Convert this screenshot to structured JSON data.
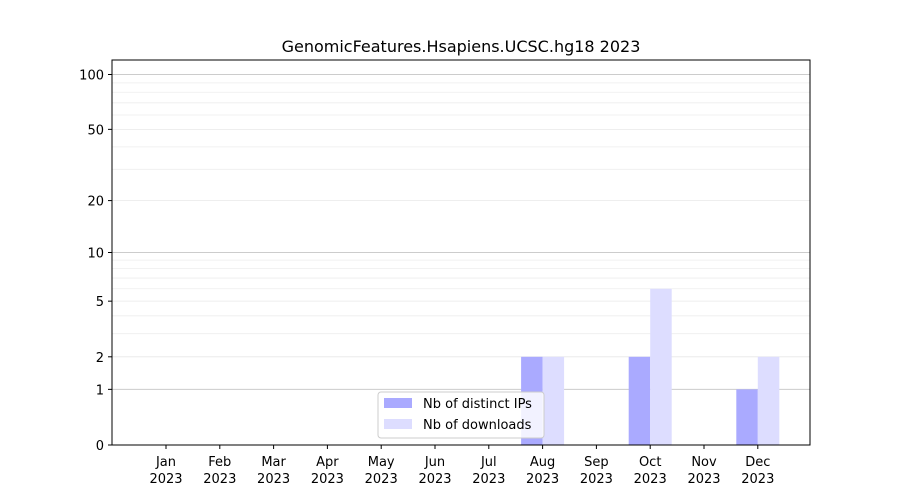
{
  "chart_data": {
    "type": "bar",
    "title": "GenomicFeatures.Hsapiens.UCSC.hg18 2023",
    "xlabel": "",
    "ylabel": "",
    "yscale": "symlog",
    "ylim": [
      0,
      120
    ],
    "yticks": [
      0,
      1,
      2,
      5,
      10,
      20,
      50,
      100
    ],
    "grid": true,
    "legend_position": "lower-center",
    "categories": [
      [
        "Jan",
        "2023"
      ],
      [
        "Feb",
        "2023"
      ],
      [
        "Mar",
        "2023"
      ],
      [
        "Apr",
        "2023"
      ],
      [
        "May",
        "2023"
      ],
      [
        "Jun",
        "2023"
      ],
      [
        "Jul",
        "2023"
      ],
      [
        "Aug",
        "2023"
      ],
      [
        "Sep",
        "2023"
      ],
      [
        "Oct",
        "2023"
      ],
      [
        "Nov",
        "2023"
      ],
      [
        "Dec",
        "2023"
      ]
    ],
    "series": [
      {
        "name": "Nb of distinct IPs",
        "color": "#aaaaff",
        "values": [
          0,
          0,
          0,
          0,
          0,
          0,
          0,
          2,
          0,
          2,
          0,
          1
        ]
      },
      {
        "name": "Nb of downloads",
        "color": "#ddddff",
        "values": [
          0,
          0,
          0,
          0,
          0,
          0,
          0,
          2,
          0,
          6,
          0,
          2
        ]
      }
    ]
  }
}
